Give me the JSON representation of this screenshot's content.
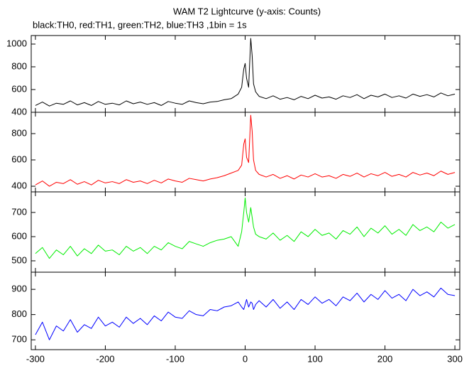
{
  "chart_data": [
    {
      "type": "line",
      "title": "WAM T2 Lightcurve (y-axis: Counts)",
      "subtitle": "black:TH0, red:TH1, green:TH2, blue:TH3 ,1bin = 1s",
      "color": "#000000",
      "x": [
        -300,
        -290,
        -280,
        -270,
        -260,
        -250,
        -240,
        -230,
        -220,
        -210,
        -200,
        -190,
        -180,
        -170,
        -160,
        -150,
        -140,
        -130,
        -120,
        -110,
        -100,
        -90,
        -80,
        -70,
        -60,
        -50,
        -40,
        -30,
        -20,
        -10,
        -5,
        -2,
        0,
        2,
        5,
        8,
        10,
        12,
        15,
        20,
        30,
        40,
        50,
        60,
        70,
        80,
        90,
        100,
        110,
        120,
        130,
        140,
        150,
        160,
        170,
        180,
        190,
        200,
        210,
        220,
        230,
        240,
        250,
        260,
        270,
        280,
        290,
        300
      ],
      "values": [
        460,
        490,
        455,
        480,
        470,
        500,
        465,
        485,
        460,
        495,
        470,
        480,
        465,
        500,
        475,
        490,
        470,
        485,
        460,
        495,
        480,
        470,
        500,
        485,
        475,
        490,
        495,
        510,
        520,
        560,
        620,
        780,
        830,
        700,
        620,
        1050,
        900,
        650,
        580,
        540,
        520,
        545,
        515,
        530,
        510,
        540,
        520,
        550,
        525,
        535,
        515,
        545,
        530,
        555,
        520,
        550,
        535,
        560,
        530,
        545,
        525,
        560,
        540,
        555,
        535,
        570,
        545,
        560
      ],
      "xlim": [
        -306,
        307
      ],
      "xticks": [
        -300,
        -200,
        -100,
        0,
        100,
        200,
        300
      ],
      "ylim": [
        400,
        1075
      ],
      "yticks": [
        400,
        600,
        800,
        1000
      ]
    },
    {
      "type": "line",
      "color": "#ff0000",
      "x": [
        -300,
        -290,
        -280,
        -270,
        -260,
        -250,
        -240,
        -230,
        -220,
        -210,
        -200,
        -190,
        -180,
        -170,
        -160,
        -150,
        -140,
        -130,
        -120,
        -110,
        -100,
        -90,
        -80,
        -70,
        -60,
        -50,
        -40,
        -30,
        -20,
        -10,
        -5,
        -2,
        0,
        2,
        5,
        8,
        10,
        12,
        15,
        20,
        30,
        40,
        50,
        60,
        70,
        80,
        90,
        100,
        110,
        120,
        130,
        140,
        150,
        160,
        170,
        180,
        190,
        200,
        210,
        220,
        230,
        240,
        250,
        260,
        270,
        280,
        290,
        300
      ],
      "values": [
        410,
        440,
        400,
        430,
        420,
        450,
        415,
        435,
        410,
        445,
        425,
        435,
        420,
        450,
        430,
        440,
        420,
        445,
        425,
        455,
        440,
        430,
        460,
        450,
        440,
        455,
        465,
        480,
        500,
        520,
        560,
        720,
        760,
        620,
        580,
        940,
        820,
        600,
        520,
        490,
        470,
        490,
        460,
        480,
        455,
        485,
        470,
        495,
        470,
        480,
        460,
        490,
        475,
        500,
        470,
        495,
        480,
        505,
        475,
        490,
        470,
        505,
        485,
        500,
        480,
        515,
        490,
        505
      ],
      "xlim": [
        -306,
        307
      ],
      "xticks": [
        -300,
        -200,
        -100,
        0,
        100,
        200,
        300
      ],
      "ylim": [
        357,
        962
      ],
      "yticks": [
        400,
        600,
        800
      ]
    },
    {
      "type": "line",
      "color": "#00ee00",
      "x": [
        -300,
        -290,
        -280,
        -270,
        -260,
        -250,
        -240,
        -230,
        -220,
        -210,
        -200,
        -190,
        -180,
        -170,
        -160,
        -150,
        -140,
        -130,
        -120,
        -110,
        -100,
        -90,
        -80,
        -70,
        -60,
        -50,
        -40,
        -30,
        -20,
        -10,
        -5,
        -2,
        0,
        2,
        5,
        8,
        10,
        12,
        15,
        20,
        30,
        40,
        50,
        60,
        70,
        80,
        90,
        100,
        110,
        120,
        130,
        140,
        150,
        160,
        170,
        180,
        190,
        200,
        210,
        220,
        230,
        240,
        250,
        260,
        270,
        280,
        290,
        300
      ],
      "values": [
        530,
        555,
        510,
        545,
        525,
        560,
        520,
        550,
        530,
        565,
        540,
        545,
        525,
        560,
        540,
        555,
        530,
        560,
        545,
        575,
        560,
        550,
        580,
        570,
        560,
        575,
        585,
        590,
        600,
        560,
        620,
        700,
        760,
        700,
        660,
        720,
        680,
        640,
        610,
        600,
        590,
        615,
        585,
        605,
        580,
        620,
        600,
        630,
        605,
        615,
        590,
        625,
        610,
        640,
        600,
        635,
        615,
        645,
        610,
        630,
        605,
        650,
        625,
        640,
        620,
        660,
        635,
        650
      ],
      "xlim": [
        -306,
        307
      ],
      "xticks": [
        -300,
        -200,
        -100,
        0,
        100,
        200,
        300
      ],
      "ylim": [
        453,
        785
      ],
      "yticks": [
        500,
        600,
        700
      ]
    },
    {
      "type": "line",
      "color": "#0000ff",
      "x": [
        -300,
        -290,
        -280,
        -270,
        -260,
        -250,
        -240,
        -230,
        -220,
        -210,
        -200,
        -190,
        -180,
        -170,
        -160,
        -150,
        -140,
        -130,
        -120,
        -110,
        -100,
        -90,
        -80,
        -70,
        -60,
        -50,
        -40,
        -30,
        -20,
        -10,
        -5,
        -2,
        0,
        2,
        5,
        8,
        10,
        12,
        15,
        20,
        30,
        40,
        50,
        60,
        70,
        80,
        90,
        100,
        110,
        120,
        130,
        140,
        150,
        160,
        170,
        180,
        190,
        200,
        210,
        220,
        230,
        240,
        250,
        260,
        270,
        280,
        290,
        300
      ],
      "values": [
        720,
        770,
        700,
        755,
        735,
        780,
        730,
        760,
        745,
        790,
        755,
        770,
        750,
        790,
        765,
        785,
        760,
        795,
        775,
        810,
        790,
        785,
        815,
        800,
        795,
        820,
        815,
        830,
        835,
        850,
        830,
        820,
        840,
        860,
        830,
        850,
        845,
        820,
        840,
        855,
        830,
        860,
        825,
        850,
        820,
        860,
        840,
        870,
        845,
        860,
        835,
        870,
        855,
        885,
        850,
        880,
        860,
        895,
        865,
        880,
        855,
        900,
        875,
        890,
        870,
        905,
        880,
        875
      ],
      "xlim": [
        -306,
        307
      ],
      "xticks": [
        -300,
        -200,
        -100,
        0,
        100,
        200,
        300
      ],
      "ylim": [
        661,
        968
      ],
      "yticks": [
        700,
        800,
        900
      ]
    }
  ]
}
